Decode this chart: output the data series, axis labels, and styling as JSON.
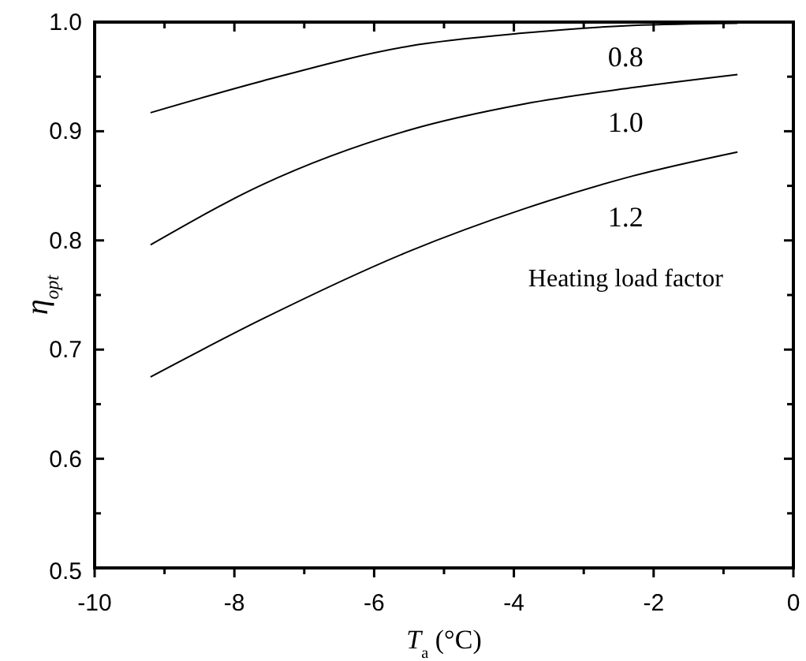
{
  "chart_data": {
    "type": "line",
    "xlabel": "T$_{a}$ (°C)",
    "ylabel": "η$_{opt}$",
    "xlim": [
      -10,
      0
    ],
    "ylim": [
      0.5,
      1.0
    ],
    "xticks": [
      -10,
      {
        "value": -9,
        "label": null
      },
      -8,
      {
        "value": -7,
        "label": null
      },
      -6,
      {
        "value": -5,
        "label": null
      },
      -4,
      {
        "value": -3,
        "label": null
      },
      -2,
      {
        "value": -1,
        "label": null
      },
      0
    ],
    "yticks": [
      0.5,
      {
        "value": 0.55,
        "label": null
      },
      0.6,
      {
        "value": 0.65,
        "label": null
      },
      0.7,
      {
        "value": 0.75,
        "label": null
      },
      0.8,
      {
        "value": 0.85,
        "label": null
      },
      0.9,
      {
        "value": 0.95,
        "label": null
      },
      {
        "value": 1.0,
        "label": "1.0"
      }
    ],
    "x": [
      -9.2,
      -7.6,
      -5.5,
      -3.85,
      -2.3,
      -0.8
    ],
    "series": [
      {
        "name": "0.8",
        "color": "#000000",
        "values": [
          0.917,
          0.946,
          0.978,
          0.99,
          0.997,
          0.999
        ]
      },
      {
        "name": "1.0",
        "color": "#000000",
        "values": [
          0.796,
          0.851,
          0.901,
          0.925,
          0.94,
          0.952
        ]
      },
      {
        "name": "1.2",
        "color": "#000000",
        "values": [
          0.675,
          0.728,
          0.79,
          0.829,
          0.859,
          0.881
        ]
      }
    ],
    "annotations": [
      "Heating load factor"
    ],
    "grid": false,
    "marker": "none",
    "line_style": "solid"
  }
}
